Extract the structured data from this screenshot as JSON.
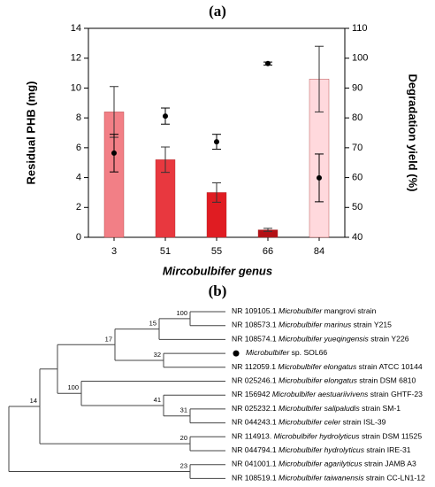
{
  "chart_data": {
    "type": "bar",
    "title": "(a)",
    "categories": [
      "3",
      "51",
      "55",
      "66",
      "84"
    ],
    "x_label": "Mircobulbifer genus",
    "y_label": "Residual PHB (mg)",
    "y2_label": "Degradation yield (%)",
    "ylim": [
      0,
      14
    ],
    "yticks": [
      0,
      2,
      4,
      6,
      8,
      10,
      12,
      14
    ],
    "y2lim": [
      40,
      110
    ],
    "y2ticks": [
      40,
      50,
      60,
      70,
      80,
      90,
      100,
      110
    ],
    "series": [
      {
        "type": "bar",
        "colors": [
          "#f27f86",
          "#e8383f",
          "#e01c22",
          "#b30f14",
          "#ffd9dd"
        ],
        "values": [
          8.4,
          5.2,
          3.0,
          0.5,
          10.6
        ],
        "errors": [
          1.7,
          0.85,
          0.65,
          0.1,
          2.2
        ]
      },
      {
        "type": "scatter",
        "axis": "y2",
        "color": "#000000",
        "values": [
          68.2,
          80.6,
          72,
          98.2,
          59.9
        ],
        "errors": [
          6.3,
          2.7,
          2.5,
          0.5,
          8
        ]
      }
    ]
  },
  "tree": {
    "title": "(b)",
    "leaves": [
      {
        "accession": "NR 109105.1",
        "name": "Microbulbifer",
        "suffix": "mangrovi strain"
      },
      {
        "accession": "NR 108573.1",
        "name": "Microbulbifer marinus",
        "suffix": "strain Y215"
      },
      {
        "accession": "NR 108574.1",
        "name": "Microbulbifer yueqingensis",
        "suffix": "strain Y226"
      },
      {
        "name": "Microbulbifer",
        "suffix": "sp. SOL66"
      },
      {
        "accession": "NR 112059.1",
        "name": "Microbulbifer elongatus",
        "suffix": "strain ATCC 10144"
      },
      {
        "accession": "NR 025246.1",
        "name": "Microbulbifer elongatus",
        "suffix": "strain DSM 6810"
      },
      {
        "accession": "NR 156942",
        "name": "Microbulbifer aestuariivivens",
        "suffix": "strain GHTF-23"
      },
      {
        "accession": "NR 025232.1",
        "name": "Microbulbifer salipaludis",
        "suffix": "strain SM-1"
      },
      {
        "accession": "NR 044243.1",
        "name": "Microbulbifer celer",
        "suffix": "strain ISL-39"
      },
      {
        "accession": "NR 114913.",
        "name": "Microbulbifer hydrolyticus",
        "suffix": "strain DSM 11525"
      },
      {
        "accession": "NR 044794.1",
        "name": "Microbulbifer hydrolyticus",
        "suffix": "strain IRE-31"
      },
      {
        "accession": "NR 041001.1",
        "name": "Microbulbifer agarilyticus",
        "suffix": "strain JAMB A3"
      },
      {
        "accession": "NR 108519.1",
        "name": "Microbulbifer taiwanensis",
        "suffix": "strain CC-LN1-12"
      }
    ],
    "bootstrap": [
      100,
      15,
      32,
      17,
      31,
      41,
      100,
      14,
      20,
      23
    ]
  }
}
